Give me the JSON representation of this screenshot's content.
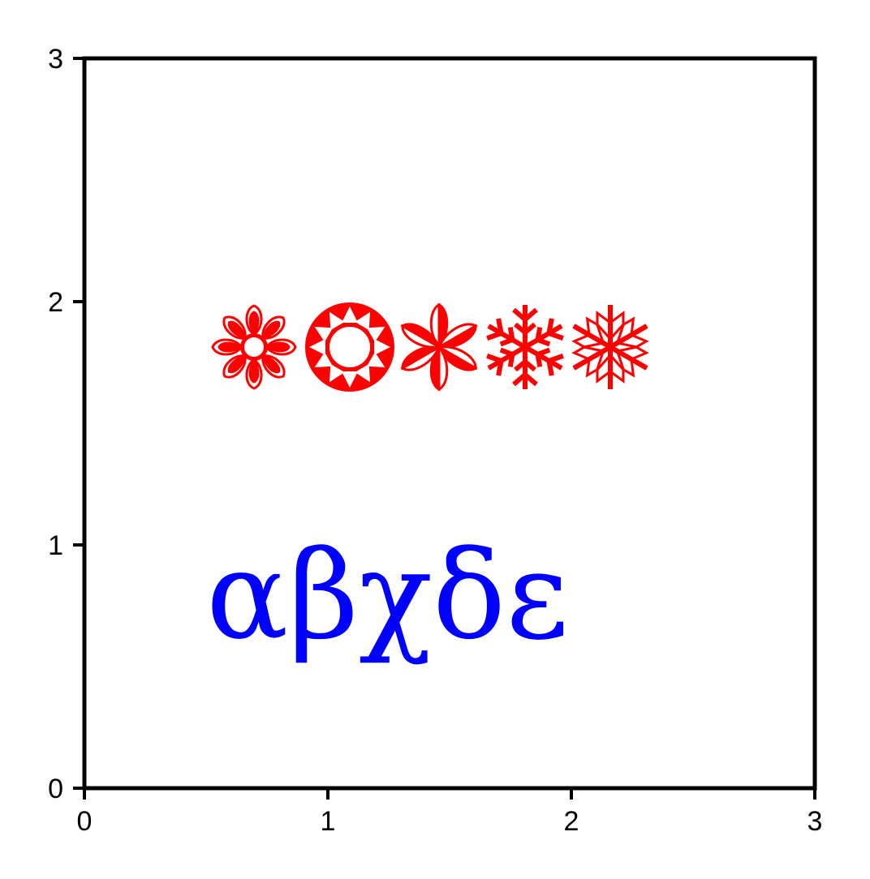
{
  "chart_data": {
    "type": "scatter",
    "title": "",
    "xlabel": "",
    "ylabel": "",
    "xlim": [
      0,
      3
    ],
    "ylim": [
      0,
      3
    ],
    "x_ticks": [
      "0",
      "1",
      "2",
      "3"
    ],
    "y_ticks": [
      "0",
      "1",
      "2",
      "3"
    ],
    "grid": false,
    "legend": "none",
    "annotations": [
      {
        "kind": "symbols",
        "x": 0.5,
        "y": 1.8,
        "symbols": [
          "flower-icon",
          "sun-icon",
          "propeller-icon",
          "snowflake-icon",
          "outlined-snowflake-icon"
        ],
        "color": "#ff0000"
      },
      {
        "kind": "text",
        "x": 0.5,
        "y": 0.6,
        "text": "αβχδε",
        "color": "#0000ff"
      }
    ]
  }
}
